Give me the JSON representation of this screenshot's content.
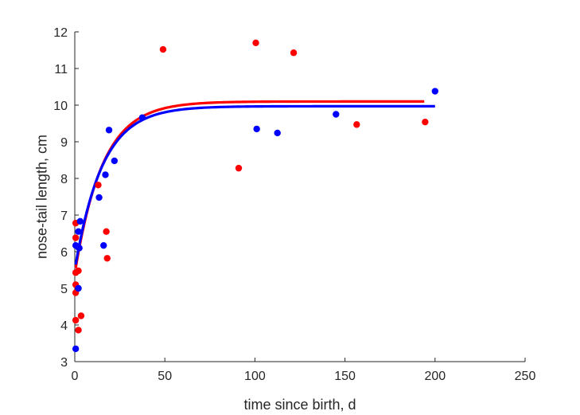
{
  "chart_data": {
    "type": "scatter",
    "xlabel": "time since birth, d",
    "ylabel": "nose-tail length, cm",
    "xlim": [
      0,
      250
    ],
    "ylim": [
      3,
      12
    ],
    "xticks": [
      "0",
      "50",
      "100",
      "150",
      "200",
      "250"
    ],
    "yticks": [
      "3",
      "4",
      "5",
      "6",
      "7",
      "8",
      "9",
      "10",
      "11",
      "12"
    ],
    "grid": false,
    "legend": "none",
    "colors": {
      "red": "#ff0000",
      "blue": "#0000ff"
    },
    "series": [
      {
        "color": "#ff0000",
        "points": [
          {
            "x": 0.5,
            "y": 6.78
          },
          {
            "x": 0.5,
            "y": 6.38
          },
          {
            "x": 0.5,
            "y": 5.43
          },
          {
            "x": 0.5,
            "y": 5.1
          },
          {
            "x": 0.5,
            "y": 4.88
          },
          {
            "x": 0.5,
            "y": 4.13
          },
          {
            "x": 2,
            "y": 5.48
          },
          {
            "x": 2,
            "y": 3.86
          },
          {
            "x": 3.5,
            "y": 4.25
          },
          {
            "x": 13,
            "y": 7.82
          },
          {
            "x": 17.5,
            "y": 6.55
          },
          {
            "x": 18,
            "y": 5.82
          },
          {
            "x": 49,
            "y": 11.52
          },
          {
            "x": 91,
            "y": 8.28
          },
          {
            "x": 100.5,
            "y": 11.7
          },
          {
            "x": 121.5,
            "y": 11.43
          },
          {
            "x": 156.5,
            "y": 9.47
          },
          {
            "x": 194.5,
            "y": 9.54
          }
        ],
        "fit": {
          "x_range": [
            0.5,
            194
          ],
          "start": 5.55,
          "asymptote": 10.1,
          "rate": 0.065
        }
      },
      {
        "color": "#0000ff",
        "points": [
          {
            "x": 0.5,
            "y": 6.17
          },
          {
            "x": 0.5,
            "y": 3.35
          },
          {
            "x": 2,
            "y": 6.55
          },
          {
            "x": 2,
            "y": 6.12
          },
          {
            "x": 2.5,
            "y": 6.1
          },
          {
            "x": 2,
            "y": 5.0
          },
          {
            "x": 3,
            "y": 6.83
          },
          {
            "x": 13.5,
            "y": 7.48
          },
          {
            "x": 16,
            "y": 6.17
          },
          {
            "x": 17,
            "y": 8.1
          },
          {
            "x": 19,
            "y": 9.32
          },
          {
            "x": 22,
            "y": 8.48
          },
          {
            "x": 37.5,
            "y": 9.66
          },
          {
            "x": 101,
            "y": 9.35
          },
          {
            "x": 112.5,
            "y": 9.24
          },
          {
            "x": 145,
            "y": 9.75
          },
          {
            "x": 200,
            "y": 10.38
          }
        ],
        "fit": {
          "x_range": [
            0.5,
            200
          ],
          "start": 5.65,
          "asymptote": 9.97,
          "rate": 0.066
        }
      }
    ]
  }
}
